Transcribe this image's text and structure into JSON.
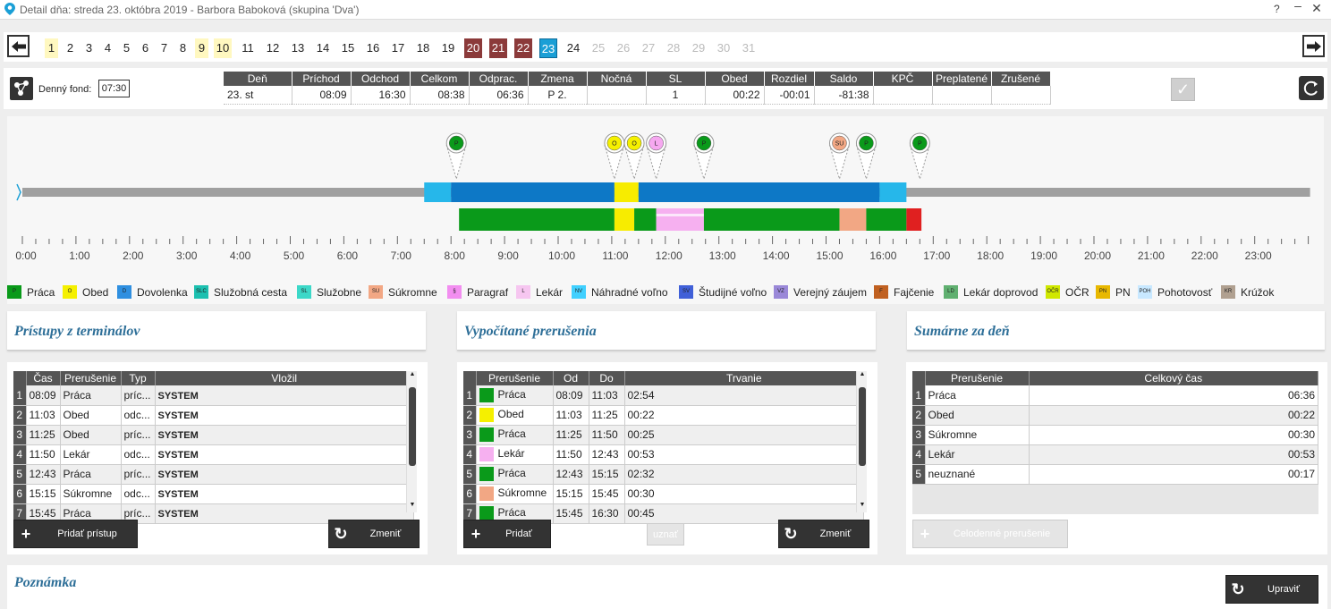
{
  "title": "Detail dňa: streda 23. októbra 2019 -  Barbora Baboková  (skupina 'Dva')",
  "window": {
    "help": "?",
    "minimize": "–",
    "close": "✕"
  },
  "days": [
    {
      "n": "1",
      "s": "yel"
    },
    {
      "n": "2",
      "s": ""
    },
    {
      "n": "3",
      "s": ""
    },
    {
      "n": "4",
      "s": ""
    },
    {
      "n": "5",
      "s": ""
    },
    {
      "n": "6",
      "s": ""
    },
    {
      "n": "7",
      "s": ""
    },
    {
      "n": "8",
      "s": ""
    },
    {
      "n": "9",
      "s": "yel"
    },
    {
      "n": "10",
      "s": "yel"
    },
    {
      "n": "11",
      "s": ""
    },
    {
      "n": "12",
      "s": ""
    },
    {
      "n": "13",
      "s": ""
    },
    {
      "n": "14",
      "s": ""
    },
    {
      "n": "15",
      "s": ""
    },
    {
      "n": "16",
      "s": ""
    },
    {
      "n": "17",
      "s": ""
    },
    {
      "n": "18",
      "s": ""
    },
    {
      "n": "19",
      "s": ""
    },
    {
      "n": "20",
      "s": "red"
    },
    {
      "n": "21",
      "s": "red"
    },
    {
      "n": "22",
      "s": "red"
    },
    {
      "n": "23",
      "s": "cur"
    },
    {
      "n": "24",
      "s": ""
    },
    {
      "n": "25",
      "s": "dis"
    },
    {
      "n": "26",
      "s": "dis"
    },
    {
      "n": "27",
      "s": "dis"
    },
    {
      "n": "28",
      "s": "dis"
    },
    {
      "n": "29",
      "s": "dis"
    },
    {
      "n": "30",
      "s": "dis"
    },
    {
      "n": "31",
      "s": "dis"
    }
  ],
  "fond": {
    "label": "Denný fond:",
    "value": "07:30"
  },
  "summary": {
    "headers": [
      "Deň",
      "Príchod",
      "Odchod",
      "Celkom",
      "Odprac.",
      "Zmena",
      "Nočná",
      "SL",
      "Obed",
      "Rozdiel",
      "Saldo",
      "KPČ",
      "Preplatené",
      "Zrušené"
    ],
    "row": [
      "23. st",
      "08:09",
      "16:30",
      "08:38",
      "06:36",
      "P 2.",
      "",
      "1",
      "00:22",
      "-00:01",
      "-81:38",
      "",
      "",
      ""
    ]
  },
  "hours": [
    "0:00",
    "1:00",
    "2:00",
    "3:00",
    "4:00",
    "5:00",
    "6:00",
    "7:00",
    "8:00",
    "9:00",
    "10:00",
    "11:00",
    "12:00",
    "13:00",
    "14:00",
    "15:00",
    "16:00",
    "17:00",
    "18:00",
    "19:00",
    "20:00",
    "21:00",
    "22:00",
    "23:00"
  ],
  "pins": [
    {
      "h": 8.1,
      "code": "P",
      "color": "#0a9a1a"
    },
    {
      "h": 11.05,
      "code": "O",
      "color": "#f5f000"
    },
    {
      "h": 11.42,
      "code": "O",
      "color": "#f5f000"
    },
    {
      "h": 11.83,
      "code": "L",
      "color": "#f6a8f0"
    },
    {
      "h": 12.72,
      "code": "P",
      "color": "#0a9a1a"
    },
    {
      "h": 15.25,
      "code": "SU",
      "color": "#f2a784"
    },
    {
      "h": 15.75,
      "code": "P",
      "color": "#0a9a1a"
    },
    {
      "h": 16.75,
      "code": "P",
      "color": "#0a9a1a"
    }
  ],
  "bar_segments": [
    {
      "from": 7.5,
      "to": 8.0,
      "color": "#26b7ea"
    },
    {
      "from": 8.0,
      "to": 11.05,
      "color": "#0d78c6"
    },
    {
      "from": 11.05,
      "to": 11.5,
      "color": "#f7ec00"
    },
    {
      "from": 11.5,
      "to": 16.0,
      "color": "#0d78c6"
    },
    {
      "from": 16.0,
      "to": 16.5,
      "color": "#26b7ea"
    }
  ],
  "detail_segments": [
    {
      "from": 8.15,
      "to": 11.05,
      "color": "#0a9a1a"
    },
    {
      "from": 11.05,
      "to": 11.42,
      "color": "#f7ec00"
    },
    {
      "from": 11.42,
      "to": 11.83,
      "color": "#0a9a1a"
    },
    {
      "from": 11.83,
      "to": 12.72,
      "color": "#f6b0f0"
    },
    {
      "from": 12.72,
      "to": 15.25,
      "color": "#0a9a1a"
    },
    {
      "from": 15.25,
      "to": 15.75,
      "color": "#f2a784"
    },
    {
      "from": 15.75,
      "to": 16.5,
      "color": "#0a9a1a"
    },
    {
      "from": 16.5,
      "to": 16.78,
      "color": "#e02020"
    }
  ],
  "legend": [
    {
      "code": "P",
      "label": "Práca",
      "color": "#0a9a1a",
      "x": 0
    },
    {
      "code": "O",
      "label": "Obed",
      "color": "#f5f000",
      "x": 62
    },
    {
      "code": "D",
      "label": "Dovolenka",
      "color": "#2f8fe0",
      "x": 123
    },
    {
      "code": "SLC",
      "label": "Služobná cesta",
      "color": "#1cc0b0",
      "x": 209
    },
    {
      "code": "SL",
      "label": "Služobne",
      "color": "#3cd8c8",
      "x": 324
    },
    {
      "code": "SU",
      "label": "Súkromne",
      "color": "#f2a784",
      "x": 404
    },
    {
      "code": "§",
      "label": "Paragraf",
      "color": "#f28ef0",
      "x": 492
    },
    {
      "code": "L",
      "label": "Lekár",
      "color": "#f6c6f0",
      "x": 569
    },
    {
      "code": "NV",
      "label": "Náhradné voľno",
      "color": "#40d0ff",
      "x": 631
    },
    {
      "code": "SV",
      "label": "Študijné voľno",
      "color": "#4060d8",
      "x": 751
    },
    {
      "code": "VZ",
      "label": "Verejný záujem",
      "color": "#9a88d8",
      "x": 857
    },
    {
      "code": "F",
      "label": "Fajčenie",
      "color": "#c06020",
      "x": 969
    },
    {
      "code": "LD",
      "label": "Lekár doprovod",
      "color": "#60b070",
      "x": 1047
    },
    {
      "code": "OČR",
      "label": "OČR",
      "color": "#d0e800",
      "x": 1161
    },
    {
      "code": "PN",
      "label": "PN",
      "color": "#e8b800",
      "x": 1217
    },
    {
      "code": "POH",
      "label": "Pohotovosť",
      "color": "#c8e8ff",
      "x": 1264
    },
    {
      "code": "KR",
      "label": "Krúžok",
      "color": "#b0a090",
      "x": 1357
    }
  ],
  "panel1": {
    "title": "Prístupy z terminálov",
    "headers": [
      "Čas",
      "Prerušenie",
      "Typ",
      "Vložil"
    ],
    "rows": [
      [
        "1",
        "08:09",
        "Práca",
        "príc...",
        "SYSTEM"
      ],
      [
        "2",
        "11:03",
        "Obed",
        "odc...",
        "SYSTEM"
      ],
      [
        "3",
        "11:25",
        "Obed",
        "príc...",
        "SYSTEM"
      ],
      [
        "4",
        "11:50",
        "Lekár",
        "odc...",
        "SYSTEM"
      ],
      [
        "5",
        "12:43",
        "Práca",
        "príc...",
        "SYSTEM"
      ],
      [
        "6",
        "15:15",
        "Súkromne",
        "odc...",
        "SYSTEM"
      ],
      [
        "7",
        "15:45",
        "Práca",
        "príc...",
        "SYSTEM"
      ]
    ],
    "btn_add": "Pridať prístup",
    "btn_change": "Zmeniť"
  },
  "panel2": {
    "title": "Vypočítané prerušenia",
    "headers": [
      "Prerušenie",
      "Od",
      "Do",
      "Trvanie"
    ],
    "rows": [
      {
        "n": "1",
        "name": "Práca",
        "color": "#0a9a1a",
        "od": "08:09",
        "do": "11:03",
        "tr": "02:54"
      },
      {
        "n": "2",
        "name": "Obed",
        "color": "#f5f000",
        "od": "11:03",
        "do": "11:25",
        "tr": "00:22"
      },
      {
        "n": "3",
        "name": "Práca",
        "color": "#0a9a1a",
        "od": "11:25",
        "do": "11:50",
        "tr": "00:25"
      },
      {
        "n": "4",
        "name": "Lekár",
        "color": "#f6b0f0",
        "od": "11:50",
        "do": "12:43",
        "tr": "00:53"
      },
      {
        "n": "5",
        "name": "Práca",
        "color": "#0a9a1a",
        "od": "12:43",
        "do": "15:15",
        "tr": "02:32"
      },
      {
        "n": "6",
        "name": "Súkromne",
        "color": "#f2a784",
        "od": "15:15",
        "do": "15:45",
        "tr": "00:30"
      },
      {
        "n": "7",
        "name": "Práca",
        "color": "#0a9a1a",
        "od": "15:45",
        "do": "16:30",
        "tr": "00:45"
      }
    ],
    "btn_add": "Pridať",
    "btn_uznat": "uznať",
    "btn_change": "Zmeniť"
  },
  "panel3": {
    "title": "Sumárne za deň",
    "headers": [
      "Prerušenie",
      "Celkový čas"
    ],
    "rows": [
      [
        "1",
        "Práca",
        "06:36"
      ],
      [
        "2",
        "Obed",
        "00:22"
      ],
      [
        "3",
        "Súkromne",
        "00:30"
      ],
      [
        "4",
        "Lekár",
        "00:53"
      ],
      [
        "5",
        "neuznané",
        "00:17"
      ]
    ],
    "btn_celodenne": "Celodenné prerušenie"
  },
  "note": {
    "title": "Poznámka",
    "btn_edit": "Upraviť"
  }
}
